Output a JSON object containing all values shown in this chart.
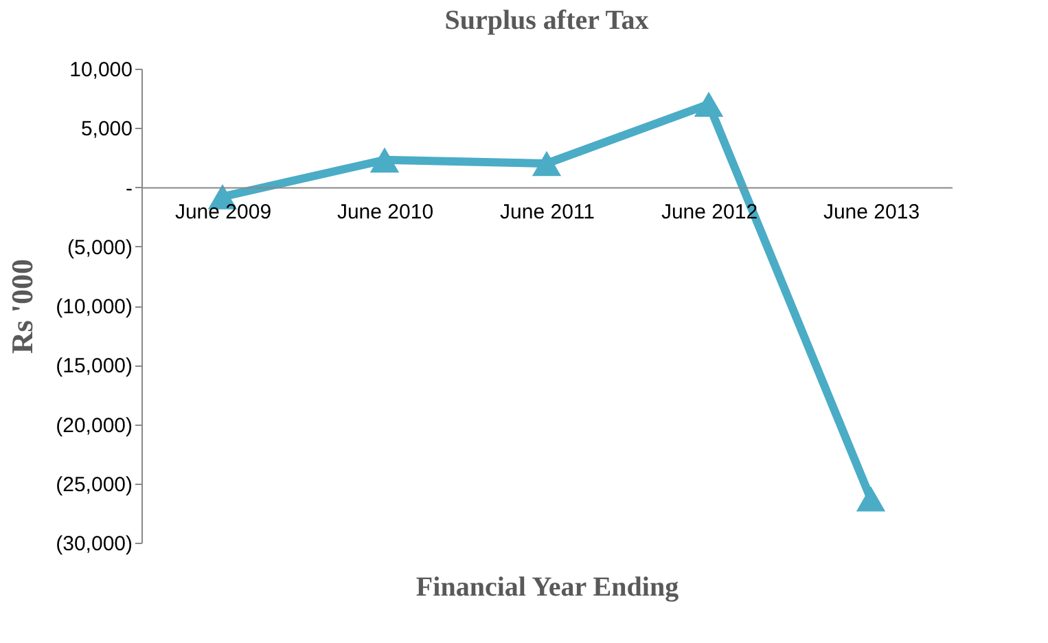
{
  "chart_data": {
    "type": "line",
    "title": "Surplus after Tax",
    "xlabel": "Financial Year Ending",
    "ylabel": "Rs '000",
    "categories": [
      "June 2009",
      "June 2010",
      "June 2011",
      "June 2012",
      "June 2013"
    ],
    "series": [
      {
        "color": "#4bacc6",
        "values": [
          -800,
          2300,
          2000,
          7000,
          -26300
        ]
      }
    ],
    "ylim": [
      -30000,
      10000
    ],
    "yticks": [
      {
        "value": -30000,
        "label": "(30,000)"
      },
      {
        "value": -25000,
        "label": "(25,000)"
      },
      {
        "value": -20000,
        "label": "(20,000)"
      },
      {
        "value": -15000,
        "label": "(15,000)"
      },
      {
        "value": -10000,
        "label": "(10,000)"
      },
      {
        "value": -5000,
        "label": "(5,000)"
      },
      {
        "value": 0,
        "label": "-"
      },
      {
        "value": 5000,
        "label": "5,000"
      },
      {
        "value": 10000,
        "label": "10,000"
      }
    ],
    "marker": "triangle",
    "line_style": "solid"
  }
}
